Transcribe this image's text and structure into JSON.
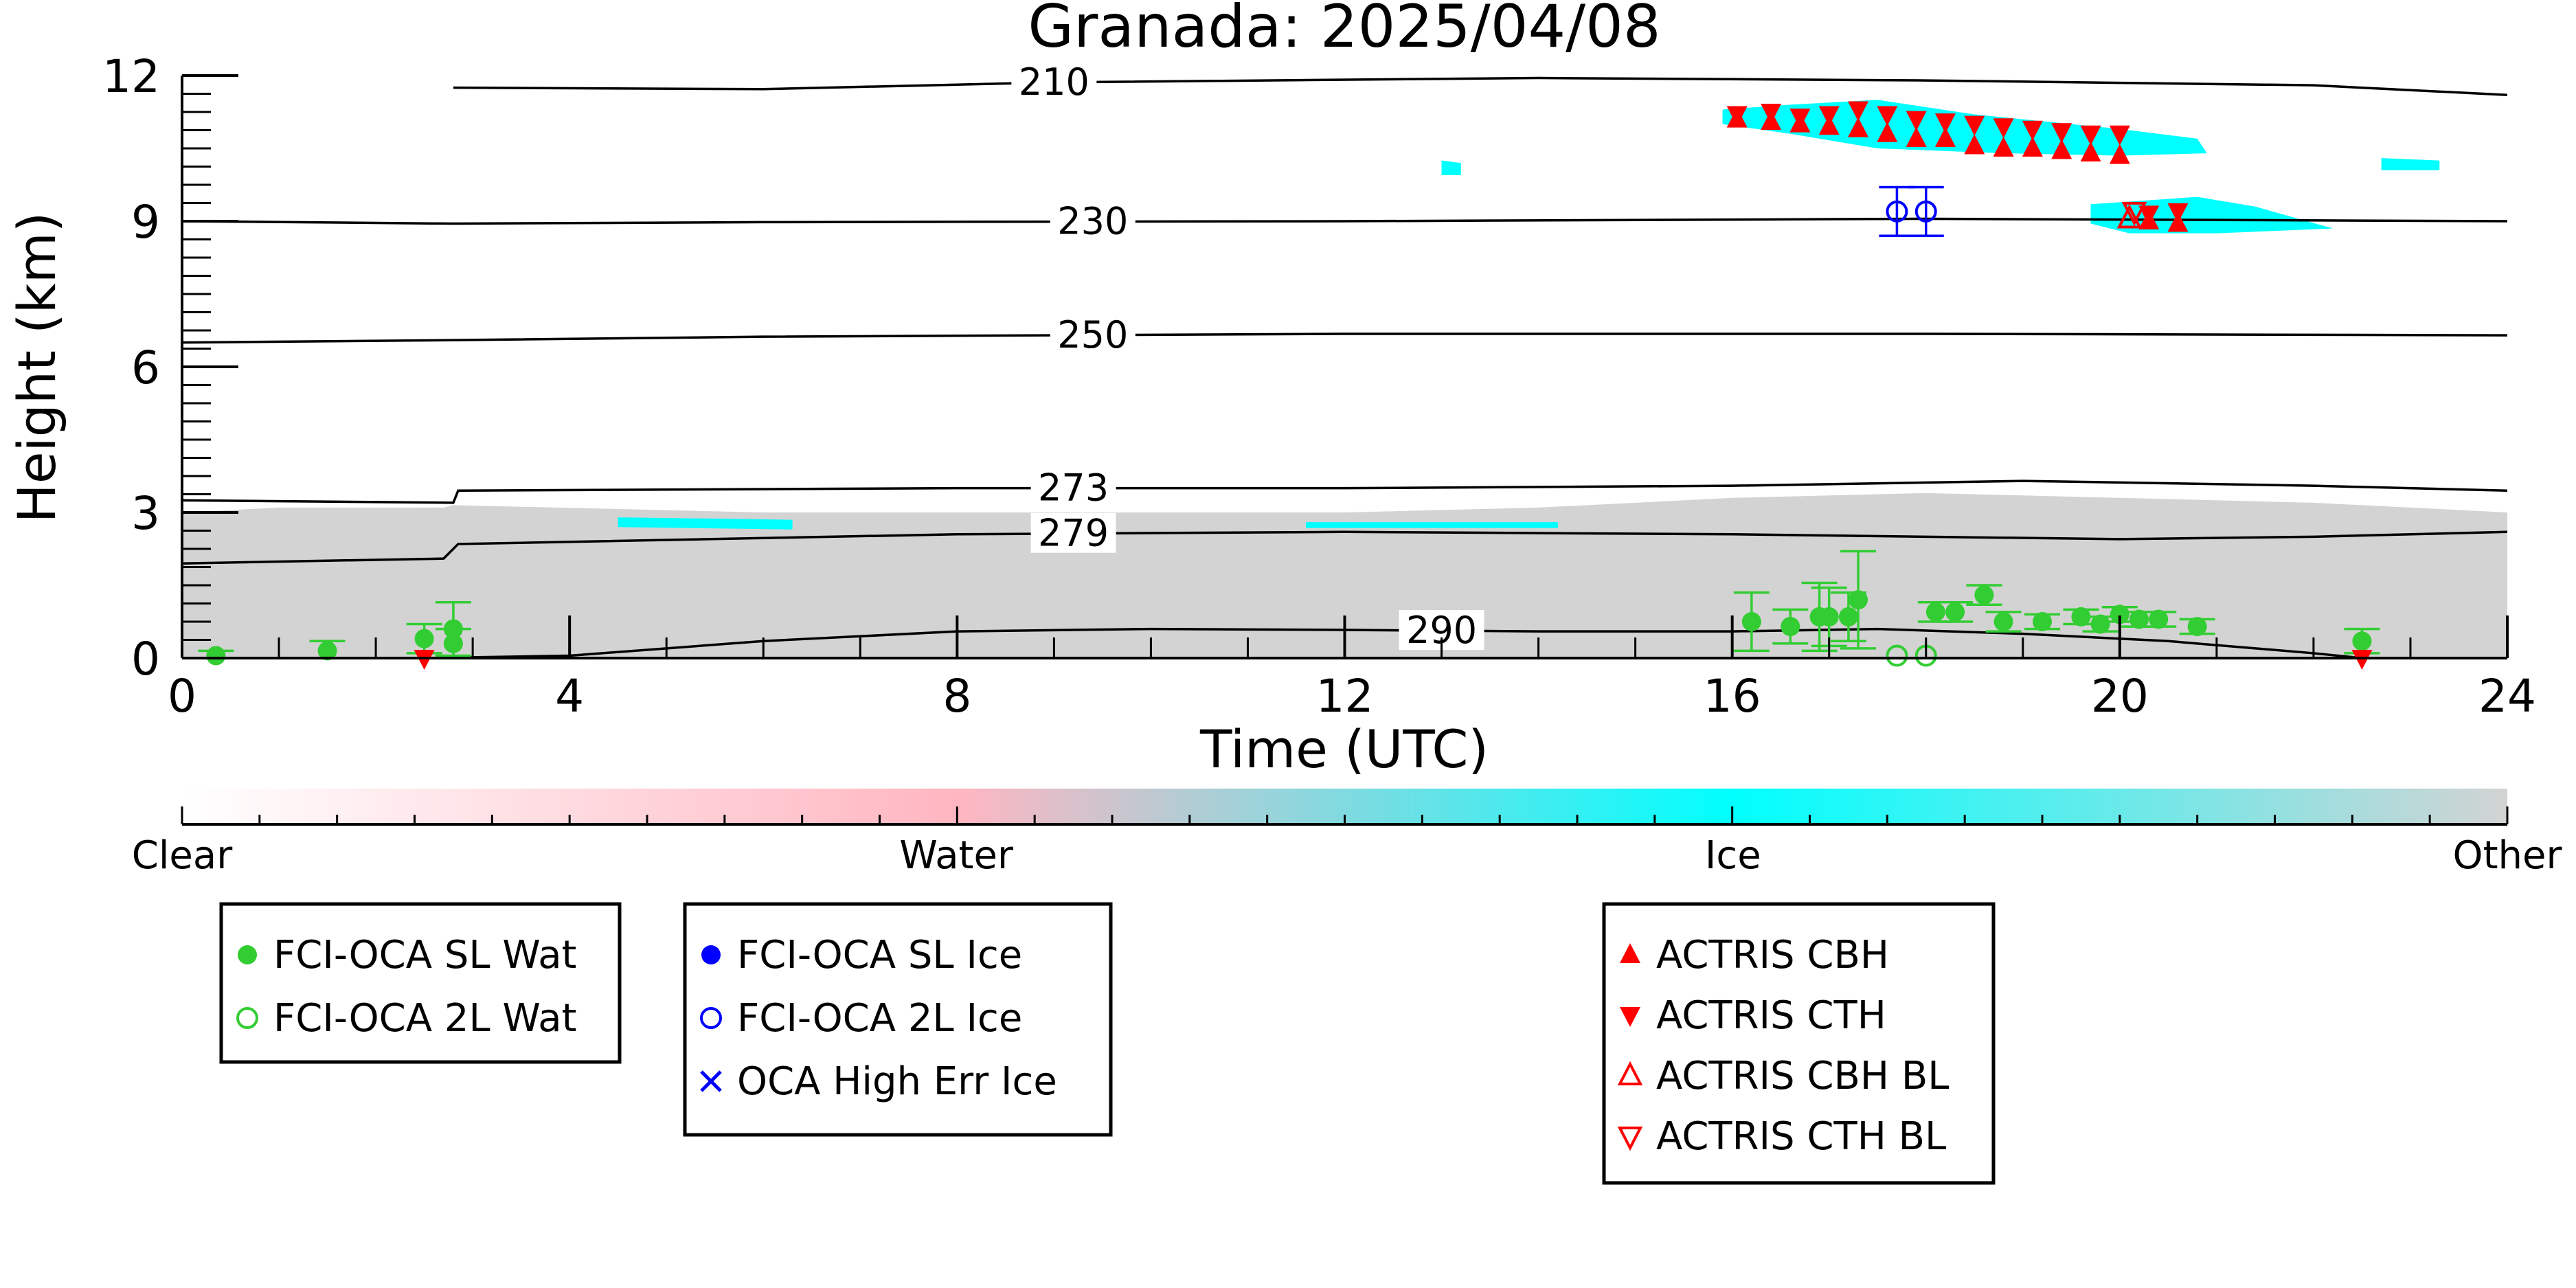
{
  "chart_data": {
    "type": "scatter",
    "title": "Granada: 2025/04/08",
    "xlabel": "Time (UTC)",
    "ylabel": "Height (km)",
    "xlim": [
      0,
      24
    ],
    "ylim": [
      0,
      12
    ],
    "x_ticks": [
      0,
      4,
      8,
      12,
      16,
      20,
      24
    ],
    "y_ticks": [
      0,
      3,
      6,
      9,
      12
    ],
    "x_tick_labels": [
      "0",
      "4",
      "8",
      "12",
      "16",
      "20",
      "24"
    ],
    "y_tick_labels": [
      "0",
      "3",
      "6",
      "9",
      "12"
    ],
    "colorbar": {
      "labels": [
        {
          "text": "Clear",
          "pos": 0.0
        },
        {
          "text": "Water",
          "pos": 0.333
        },
        {
          "text": "Ice",
          "pos": 0.667
        },
        {
          "text": "Other",
          "pos": 1.0
        }
      ],
      "colors": [
        "#ffffff",
        "#ffb6c1",
        "#00ffff",
        "#d3d3d3"
      ]
    },
    "isotherms": [
      {
        "label": "210",
        "label_x": 9.0,
        "points": [
          [
            2.8,
            11.75
          ],
          [
            6,
            11.72
          ],
          [
            9,
            11.86
          ],
          [
            14,
            11.95
          ],
          [
            18,
            11.9
          ],
          [
            22,
            11.8
          ],
          [
            24,
            11.6
          ]
        ]
      },
      {
        "label": "230",
        "label_x": 9.4,
        "points": [
          [
            0,
            9.0
          ],
          [
            2.8,
            8.95
          ],
          [
            6,
            8.98
          ],
          [
            12,
            9.0
          ],
          [
            18,
            9.05
          ],
          [
            24,
            9.0
          ]
        ]
      },
      {
        "label": "250",
        "label_x": 9.4,
        "points": [
          [
            0,
            6.5
          ],
          [
            2.8,
            6.55
          ],
          [
            6,
            6.62
          ],
          [
            12,
            6.68
          ],
          [
            18,
            6.68
          ],
          [
            24,
            6.65
          ]
        ]
      },
      {
        "label": "273",
        "label_x": 9.2,
        "points": [
          [
            0,
            3.25
          ],
          [
            2.8,
            3.2
          ],
          [
            2.85,
            3.45
          ],
          [
            8,
            3.5
          ],
          [
            12,
            3.5
          ],
          [
            16,
            3.55
          ],
          [
            19,
            3.65
          ],
          [
            22,
            3.55
          ],
          [
            24,
            3.45
          ]
        ]
      },
      {
        "label": "279",
        "label_x": 9.2,
        "points": [
          [
            0,
            1.95
          ],
          [
            2.7,
            2.05
          ],
          [
            2.85,
            2.35
          ],
          [
            8,
            2.55
          ],
          [
            12,
            2.6
          ],
          [
            16,
            2.55
          ],
          [
            20,
            2.45
          ],
          [
            22,
            2.5
          ],
          [
            24,
            2.6
          ]
        ]
      },
      {
        "label": "290",
        "label_x": 13.0,
        "points": [
          [
            2.5,
            0.0
          ],
          [
            4,
            0.05
          ],
          [
            6,
            0.35
          ],
          [
            8,
            0.55
          ],
          [
            10,
            0.6
          ],
          [
            12,
            0.58
          ],
          [
            14,
            0.55
          ],
          [
            16,
            0.55
          ],
          [
            17.5,
            0.6
          ],
          [
            19,
            0.5
          ],
          [
            20.5,
            0.35
          ],
          [
            22,
            0.1
          ],
          [
            22.5,
            0.0
          ]
        ]
      }
    ],
    "regions": [
      {
        "category": "Other",
        "color": "#d3d3d3",
        "points": [
          [
            0,
            0
          ],
          [
            0,
            3.0
          ],
          [
            1,
            3.1
          ],
          [
            2.7,
            3.1
          ],
          [
            2.8,
            3.15
          ],
          [
            6,
            3.0
          ],
          [
            9,
            3.0
          ],
          [
            12,
            3.0
          ],
          [
            14,
            3.1
          ],
          [
            16,
            3.3
          ],
          [
            18,
            3.4
          ],
          [
            20,
            3.3
          ],
          [
            22,
            3.2
          ],
          [
            24,
            3.0
          ],
          [
            24,
            0
          ]
        ]
      },
      {
        "category": "Ice",
        "color": "#00ffff",
        "points": [
          [
            15.9,
            11.3
          ],
          [
            16.6,
            11.4
          ],
          [
            17.5,
            11.5
          ],
          [
            18.5,
            11.2
          ],
          [
            20,
            10.9
          ],
          [
            20.8,
            10.7
          ],
          [
            20.9,
            10.4
          ],
          [
            20,
            10.35
          ],
          [
            18.8,
            10.4
          ],
          [
            17.5,
            10.5
          ],
          [
            16.6,
            10.8
          ],
          [
            15.9,
            11.0
          ]
        ]
      },
      {
        "category": "Ice",
        "color": "#00ffff",
        "points": [
          [
            19.7,
            9.35
          ],
          [
            20.8,
            9.5
          ],
          [
            21.4,
            9.3
          ],
          [
            22.2,
            8.85
          ],
          [
            21,
            8.75
          ],
          [
            20.1,
            8.75
          ],
          [
            19.7,
            8.95
          ]
        ]
      },
      {
        "category": "Ice",
        "color": "#00ffff",
        "points": [
          [
            22.7,
            10.3
          ],
          [
            23.3,
            10.25
          ],
          [
            23.3,
            10.05
          ],
          [
            22.7,
            10.05
          ]
        ]
      },
      {
        "category": "Ice",
        "color": "#00ffff",
        "points": [
          [
            13.0,
            10.25
          ],
          [
            13.2,
            10.2
          ],
          [
            13.2,
            9.95
          ],
          [
            13.0,
            9.95
          ]
        ]
      },
      {
        "category": "Ice",
        "color": "#00ffff",
        "points": [
          [
            4.5,
            2.9
          ],
          [
            6.3,
            2.85
          ],
          [
            6.3,
            2.65
          ],
          [
            4.5,
            2.7
          ]
        ]
      },
      {
        "category": "Ice",
        "color": "#00ffff",
        "points": [
          [
            11.6,
            2.8
          ],
          [
            14.2,
            2.8
          ],
          [
            14.2,
            2.68
          ],
          [
            11.6,
            2.68
          ]
        ]
      }
    ],
    "series": [
      {
        "name": "FCI-OCA SL Wat",
        "marker": "filled-circle",
        "color": "#32cd32",
        "points": [
          [
            0.35,
            0.05,
            0.1
          ],
          [
            1.5,
            0.15,
            0.2
          ],
          [
            2.5,
            0.4,
            0.3
          ],
          [
            2.8,
            0.6,
            0.55
          ],
          [
            2.8,
            0.3,
            0.3
          ],
          [
            16.2,
            0.75,
            0.6
          ],
          [
            16.6,
            0.65,
            0.35
          ],
          [
            16.9,
            0.85,
            0.7
          ],
          [
            17.0,
            0.85,
            0.6
          ],
          [
            17.2,
            0.85,
            0.5
          ],
          [
            17.3,
            1.2,
            1.0
          ],
          [
            18.1,
            0.95,
            0.2
          ],
          [
            18.3,
            0.95,
            0.2
          ],
          [
            18.6,
            1.3,
            0.2
          ],
          [
            18.8,
            0.75,
            0.2
          ],
          [
            19.2,
            0.75,
            0.15
          ],
          [
            19.6,
            0.85,
            0.15
          ],
          [
            19.8,
            0.7,
            0.15
          ],
          [
            20.0,
            0.9,
            0.15
          ],
          [
            20.2,
            0.8,
            0.15
          ],
          [
            20.4,
            0.8,
            0.15
          ],
          [
            20.8,
            0.65,
            0.15
          ],
          [
            22.5,
            0.35,
            0.25
          ]
        ]
      },
      {
        "name": "FCI-OCA 2L Wat",
        "marker": "open-circle",
        "color": "#32cd32",
        "points": [
          [
            17.7,
            0.05,
            0.0
          ],
          [
            18.0,
            0.05,
            0.0
          ]
        ]
      },
      {
        "name": "FCI-OCA SL Ice",
        "marker": "filled-circle",
        "color": "#0000ff",
        "points": []
      },
      {
        "name": "FCI-OCA 2L Ice",
        "marker": "open-circle",
        "color": "#0000ff",
        "points": [
          [
            17.7,
            9.2,
            0.5
          ],
          [
            18.0,
            9.2,
            0.5
          ]
        ]
      },
      {
        "name": "OCA High Err Ice",
        "marker": "x",
        "color": "#0000ff",
        "points": []
      },
      {
        "name": "ACTRIS CBH",
        "marker": "triangle-up",
        "color": "#ff0000",
        "points": [
          [
            16.05,
            11.1
          ],
          [
            16.4,
            11.05
          ],
          [
            16.7,
            11.0
          ],
          [
            17.0,
            10.95
          ],
          [
            17.3,
            10.9
          ],
          [
            17.6,
            10.8
          ],
          [
            17.9,
            10.7
          ],
          [
            18.2,
            10.7
          ],
          [
            18.5,
            10.55
          ],
          [
            18.8,
            10.5
          ],
          [
            19.1,
            10.5
          ],
          [
            19.4,
            10.45
          ],
          [
            19.7,
            10.4
          ],
          [
            20.0,
            10.35
          ],
          [
            20.3,
            9.0
          ],
          [
            20.6,
            8.95
          ]
        ]
      },
      {
        "name": "ACTRIS CTH",
        "marker": "triangle-down",
        "color": "#ff0000",
        "points": [
          [
            16.05,
            11.2
          ],
          [
            16.4,
            11.25
          ],
          [
            16.7,
            11.15
          ],
          [
            17.0,
            11.2
          ],
          [
            17.3,
            11.3
          ],
          [
            17.6,
            11.2
          ],
          [
            17.9,
            11.1
          ],
          [
            18.2,
            11.05
          ],
          [
            18.5,
            11.0
          ],
          [
            18.8,
            10.95
          ],
          [
            19.1,
            10.9
          ],
          [
            19.4,
            10.85
          ],
          [
            19.7,
            10.8
          ],
          [
            20.0,
            10.8
          ],
          [
            20.3,
            9.15
          ],
          [
            20.6,
            9.2
          ],
          [
            2.5,
            0.0
          ],
          [
            22.5,
            0.0
          ]
        ]
      },
      {
        "name": "ACTRIS CBH BL",
        "marker": "open-triangle-up",
        "color": "#ff0000",
        "points": [
          [
            20.1,
            9.05
          ]
        ]
      },
      {
        "name": "ACTRIS CTH BL",
        "marker": "open-triangle-down",
        "color": "#ff0000",
        "points": [
          [
            20.15,
            9.2
          ]
        ]
      }
    ],
    "legend": {
      "placement": "bottom",
      "groups": [
        [
          "FCI-OCA SL Wat",
          "FCI-OCA 2L Wat"
        ],
        [
          "FCI-OCA SL Ice",
          "FCI-OCA 2L Ice",
          "OCA High Err Ice"
        ],
        [
          "ACTRIS CBH",
          "ACTRIS CTH",
          "ACTRIS CBH BL",
          "ACTRIS CTH BL"
        ]
      ]
    },
    "grid": false
  }
}
